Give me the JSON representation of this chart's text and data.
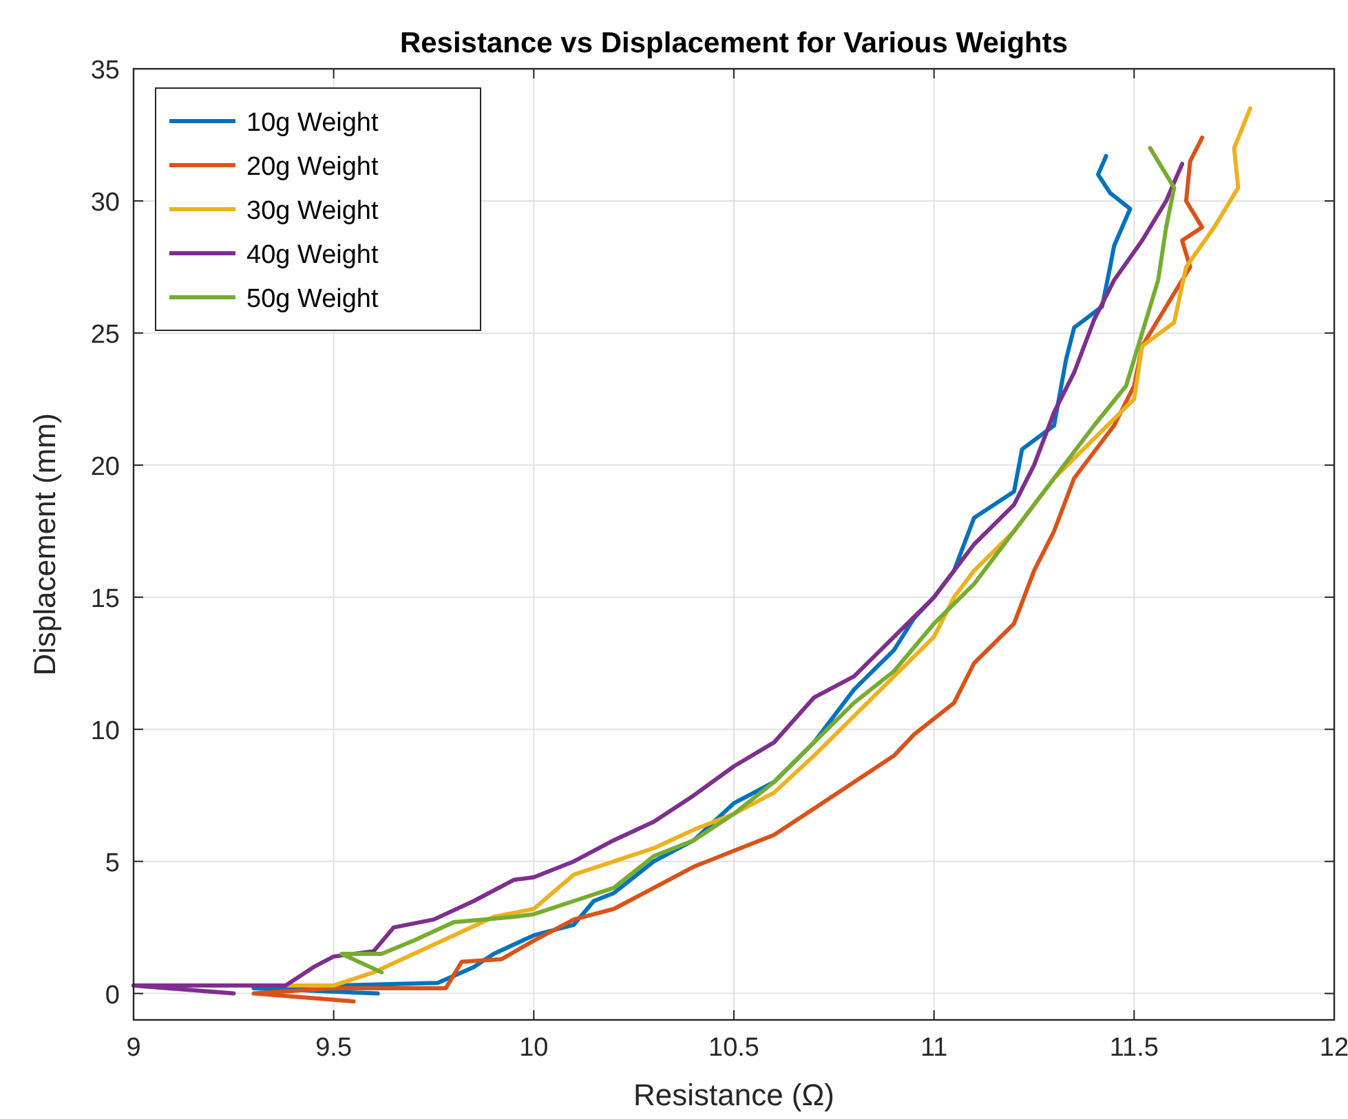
{
  "chart_data": {
    "type": "line",
    "title": "Resistance vs Displacement for Various Weights",
    "xlabel": "Resistance (Ω)",
    "ylabel": "Displacement (mm)",
    "xlim": [
      9,
      12
    ],
    "xticks": [
      9,
      9.5,
      10,
      10.5,
      11,
      11.5,
      12
    ],
    "ylim": [
      -1,
      35
    ],
    "yticks": [
      0,
      5,
      10,
      15,
      20,
      25,
      30,
      35
    ],
    "grid": true,
    "legend": "top left",
    "marker": "none",
    "line_style": "solid",
    "series": [
      {
        "name": "10g Weight",
        "color": "#0072bd",
        "x": [
          9.61,
          9.3,
          9.5,
          9.76,
          9.85,
          9.9,
          10.0,
          10.1,
          10.15,
          10.2,
          10.3,
          10.4,
          10.5,
          10.6,
          10.7,
          10.8,
          10.9,
          10.95,
          11.0,
          11.05,
          11.1,
          11.2,
          11.22,
          11.3,
          11.33,
          11.35,
          11.42,
          11.44,
          11.45,
          11.49,
          11.44,
          11.41,
          11.43
        ],
        "values": [
          0,
          0.2,
          0.3,
          0.4,
          1.0,
          1.5,
          2.2,
          2.6,
          3.5,
          3.8,
          5.0,
          5.8,
          7.2,
          8.0,
          9.5,
          11.5,
          13,
          14.2,
          15,
          16,
          18,
          19,
          20.6,
          21.5,
          24,
          25.2,
          26,
          27.5,
          28.3,
          29.7,
          30.3,
          31,
          31.7
        ]
      },
      {
        "name": "20g Weight",
        "color": "#d95319",
        "x": [
          9.55,
          9.3,
          9.5,
          9.78,
          9.82,
          9.92,
          10.0,
          10.1,
          10.2,
          10.3,
          10.4,
          10.5,
          10.6,
          10.7,
          10.8,
          10.9,
          10.95,
          11.05,
          11.1,
          11.2,
          11.25,
          11.3,
          11.35,
          11.45,
          11.5,
          11.52,
          11.58,
          11.64,
          11.62,
          11.67,
          11.63,
          11.64,
          11.67
        ],
        "values": [
          -0.3,
          0.0,
          0.2,
          0.2,
          1.2,
          1.3,
          2.0,
          2.8,
          3.2,
          4.0,
          4.8,
          5.4,
          6.0,
          7.0,
          8.0,
          9.0,
          9.8,
          11.0,
          12.5,
          14.0,
          16.0,
          17.5,
          19.5,
          21.5,
          23,
          24.5,
          26,
          27.5,
          28.5,
          29.0,
          30,
          31.5,
          32.4
        ]
      },
      {
        "name": "30g Weight",
        "color": "#edb120",
        "x": [
          9.0,
          9.5,
          9.6,
          9.7,
          9.8,
          9.9,
          10.0,
          10.1,
          10.2,
          10.3,
          10.4,
          10.5,
          10.6,
          10.7,
          10.8,
          10.9,
          11.0,
          11.05,
          11.1,
          11.2,
          11.3,
          11.4,
          11.5,
          11.52,
          11.6,
          11.63,
          11.7,
          11.76,
          11.75,
          11.79
        ],
        "values": [
          0.3,
          0.3,
          0.8,
          1.5,
          2.2,
          2.9,
          3.2,
          4.5,
          5.0,
          5.5,
          6.2,
          6.8,
          7.6,
          9.0,
          10.5,
          12,
          13.5,
          15,
          16,
          17.5,
          19.5,
          21,
          22.5,
          24.5,
          25.4,
          27.5,
          29,
          30.5,
          32,
          33.5
        ]
      },
      {
        "name": "40g Weight",
        "color": "#7e2f8e",
        "x": [
          9.25,
          9.0,
          9.38,
          9.45,
          9.5,
          9.6,
          9.65,
          9.75,
          9.85,
          9.95,
          10.0,
          10.1,
          10.2,
          10.3,
          10.4,
          10.5,
          10.6,
          10.7,
          10.8,
          10.9,
          11.0,
          11.1,
          11.2,
          11.25,
          11.3,
          11.35,
          11.4,
          11.45,
          11.52,
          11.58,
          11.62
        ],
        "values": [
          0,
          0.3,
          0.3,
          1.0,
          1.4,
          1.6,
          2.5,
          2.8,
          3.5,
          4.3,
          4.4,
          5.0,
          5.8,
          6.5,
          7.5,
          8.6,
          9.5,
          11.2,
          12.0,
          13.5,
          15.0,
          17.0,
          18.5,
          20.0,
          22.0,
          23.5,
          25.5,
          27,
          28.5,
          30,
          31.4
        ]
      },
      {
        "name": "50g Weight",
        "color": "#77ac30",
        "x": [
          9.62,
          9.52,
          9.62,
          9.7,
          9.8,
          9.95,
          10.0,
          10.1,
          10.2,
          10.3,
          10.4,
          10.5,
          10.6,
          10.7,
          10.8,
          10.9,
          11.0,
          11.1,
          11.2,
          11.3,
          11.4,
          11.48,
          11.52,
          11.56,
          11.58,
          11.6,
          11.54
        ],
        "values": [
          0.8,
          1.5,
          1.5,
          2.0,
          2.7,
          2.9,
          3.0,
          3.5,
          4.0,
          5.2,
          5.8,
          6.8,
          8.0,
          9.5,
          11.0,
          12.2,
          14.0,
          15.5,
          17.5,
          19.5,
          21.5,
          23,
          25,
          27,
          29,
          30.5,
          32
        ]
      }
    ]
  }
}
